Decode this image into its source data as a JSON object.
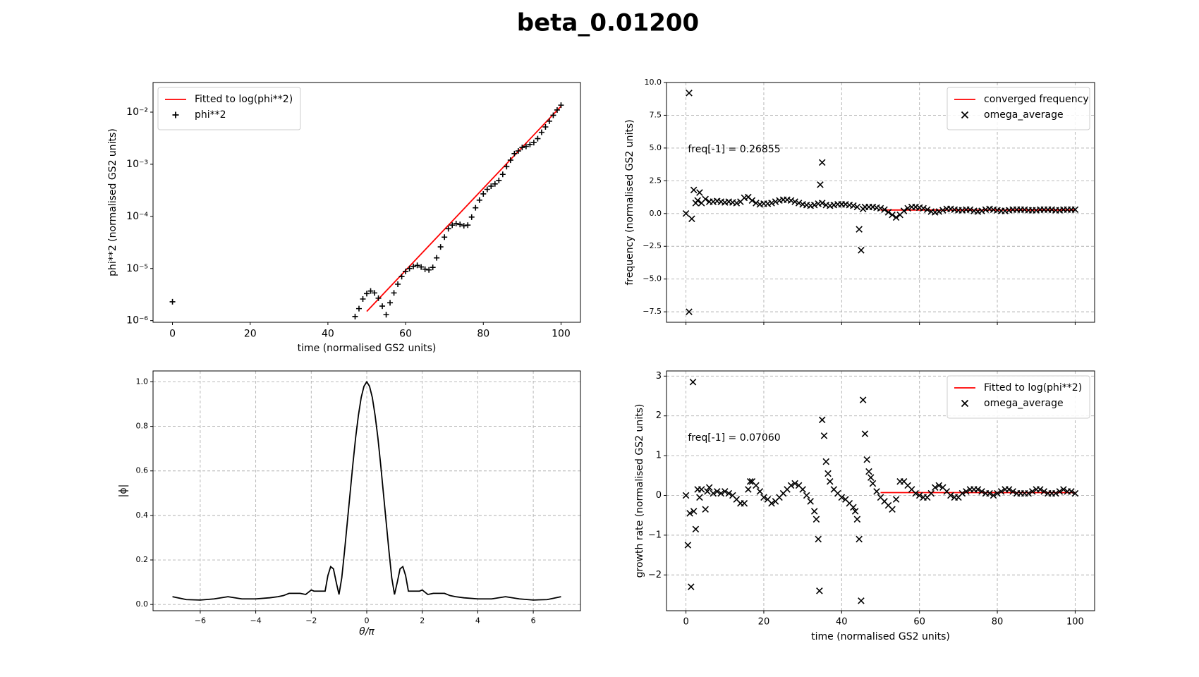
{
  "title": "beta_0.01200",
  "chart_data": [
    {
      "type": "scatter",
      "yscale": "log",
      "xlabel": "time (normalised GS2 units)",
      "ylabel": "phi**2 (normalised GS2 units)",
      "xlim": [
        -5,
        105
      ],
      "xticks": [
        0,
        20,
        40,
        60,
        80,
        100
      ],
      "ylim": [
        9.3e-07,
        0.037
      ],
      "yticks": [
        {
          "value": 1e-06,
          "label": "10⁻⁶"
        },
        {
          "value": 1e-05,
          "label": "10⁻⁵"
        },
        {
          "value": 0.0001,
          "label": "10⁻⁴"
        },
        {
          "value": 0.001,
          "label": "10⁻³"
        },
        {
          "value": 0.01,
          "label": "10⁻²"
        }
      ],
      "grid": false,
      "legend": "upper left",
      "series": [
        {
          "name": "Fitted to log(phi**2)",
          "color": "#ff0000",
          "kind": "line",
          "x": [
            50,
            100
          ],
          "values": [
            1.5e-06,
            0.013
          ]
        },
        {
          "name": "phi**2",
          "color": "#000000",
          "kind": "plus",
          "x": [
            0,
            47,
            48,
            49,
            50,
            51,
            52,
            53,
            54,
            55,
            56,
            57,
            58,
            59,
            60,
            61,
            62,
            63,
            64,
            65,
            66,
            67,
            68,
            69,
            70,
            71,
            72,
            73,
            74,
            75,
            76,
            77,
            78,
            79,
            80,
            81,
            82,
            83,
            84,
            85,
            86,
            87,
            88,
            89,
            90,
            91,
            92,
            93,
            94,
            95,
            96,
            97,
            98,
            99,
            100
          ],
          "values": [
            2.3e-06,
            1.2e-06,
            1.7e-06,
            2.6e-06,
            3.3e-06,
            3.7e-06,
            3.4e-06,
            2.7e-06,
            1.9e-06,
            1.3e-06,
            2.2e-06,
            3.4e-06,
            5e-06,
            7e-06,
            8.8e-06,
            1e-05,
            1.1e-05,
            1.15e-05,
            1.07e-05,
            9.7e-06,
            9.4e-06,
            1.05e-05,
            1.6e-05,
            2.6e-05,
            4e-05,
            5.8e-05,
            6.8e-05,
            7.3e-05,
            7e-05,
            6.6e-05,
            6.8e-05,
            9.7e-05,
            0.000146,
            0.000205,
            0.00027,
            0.00033,
            0.00038,
            0.00042,
            0.00049,
            0.00064,
            0.0009,
            0.0012,
            0.0016,
            0.0018,
            0.0021,
            0.0022,
            0.0024,
            0.0026,
            0.0031,
            0.0041,
            0.0052,
            0.0067,
            0.0087,
            0.011,
            0.0136
          ]
        }
      ]
    },
    {
      "type": "scatter",
      "ylabel": "frequency (normalised GS2 units)",
      "annotation": "freq[-1] = 0.26855",
      "xlim": [
        -5,
        105
      ],
      "xticks": [
        0,
        20,
        40,
        60,
        80,
        100
      ],
      "xticklabels": false,
      "ylim": [
        -8.3,
        10.0
      ],
      "yticks": [
        {
          "value": -7.5,
          "label": "−7.5"
        },
        {
          "value": -5,
          "label": "−5.0"
        },
        {
          "value": -2.5,
          "label": "−2.5"
        },
        {
          "value": 0,
          "label": "0.0"
        },
        2.5,
        {
          "value": 5,
          "label": "5.0"
        },
        7.5,
        {
          "value": 10,
          "label": "10.0"
        }
      ],
      "grid": true,
      "legend": "upper right",
      "series": [
        {
          "name": "converged frequency",
          "color": "#ff0000",
          "kind": "line",
          "x": [
            50,
            100
          ],
          "values": [
            0.26855,
            0.26855
          ]
        },
        {
          "name": "omega_average",
          "color": "#000000",
          "kind": "x",
          "x": [
            0,
            0.8,
            0.8,
            1.5,
            2,
            2.5,
            3,
            3.5,
            4,
            5,
            6,
            7,
            8,
            9,
            10,
            11,
            12,
            13,
            14,
            15,
            16,
            17,
            18,
            19,
            20,
            21,
            22,
            23,
            24,
            25,
            26,
            27,
            28,
            29,
            30,
            31,
            32,
            33,
            34,
            34.5,
            35,
            35,
            36,
            37,
            38,
            39,
            40,
            41,
            42,
            43,
            44,
            44.5,
            45,
            45.5,
            46,
            47,
            48,
            49,
            50,
            51,
            52,
            53,
            54,
            55,
            56,
            57,
            58,
            59,
            60,
            61,
            62,
            63,
            64,
            65,
            66,
            67,
            68,
            69,
            70,
            71,
            72,
            73,
            74,
            75,
            76,
            77,
            78,
            79,
            80,
            81,
            82,
            83,
            84,
            85,
            86,
            87,
            88,
            89,
            90,
            91,
            92,
            93,
            94,
            95,
            96,
            97,
            98,
            99,
            100
          ],
          "values": [
            0,
            9.2,
            -7.5,
            -0.4,
            1.8,
            0.8,
            1.0,
            1.6,
            0.8,
            1.1,
            0.9,
            0.9,
            0.95,
            0.9,
            0.85,
            0.9,
            0.85,
            0.8,
            0.9,
            1.2,
            1.25,
            1.0,
            0.8,
            0.7,
            0.75,
            0.75,
            0.8,
            0.9,
            1.0,
            1.05,
            1.05,
            1.0,
            0.9,
            0.8,
            0.7,
            0.65,
            0.6,
            0.65,
            0.75,
            2.2,
            3.9,
            0.8,
            0.65,
            0.6,
            0.65,
            0.7,
            0.7,
            0.7,
            0.65,
            0.6,
            0.5,
            -1.2,
            -2.8,
            0.35,
            0.5,
            0.5,
            0.5,
            0.45,
            0.4,
            0.3,
            0.1,
            -0.1,
            -0.3,
            -0.1,
            0.2,
            0.4,
            0.5,
            0.5,
            0.45,
            0.4,
            0.3,
            0.15,
            0.1,
            0.15,
            0.25,
            0.35,
            0.35,
            0.3,
            0.25,
            0.25,
            0.3,
            0.3,
            0.2,
            0.15,
            0.2,
            0.3,
            0.35,
            0.3,
            0.25,
            0.2,
            0.2,
            0.25,
            0.3,
            0.3,
            0.3,
            0.3,
            0.25,
            0.25,
            0.25,
            0.3,
            0.3,
            0.3,
            0.3,
            0.25,
            0.25,
            0.3,
            0.3,
            0.3,
            0.3
          ]
        }
      ]
    },
    {
      "type": "line",
      "xlabel": "θ/π",
      "ylabel": "|ϕ|",
      "xlim": [
        -7.7,
        7.7
      ],
      "xticks": [
        {
          "value": -6,
          "label": "−6"
        },
        {
          "value": -4,
          "label": "−4"
        },
        {
          "value": -2,
          "label": "−2"
        },
        0,
        2,
        4,
        6
      ],
      "ylim": [
        -0.028,
        1.049
      ],
      "yticks": [
        {
          "value": 0,
          "label": "0.0"
        },
        0.2,
        0.4,
        0.6,
        0.8,
        {
          "value": 1,
          "label": "1.0"
        }
      ],
      "grid": true,
      "series": [
        {
          "color": "#000000",
          "kind": "line",
          "x": [
            -7,
            -6.5,
            -6,
            -5.5,
            -5,
            -4.5,
            -4,
            -3.5,
            -3.2,
            -3,
            -2.8,
            -2.6,
            -2.4,
            -2.2,
            -2,
            -1.9,
            -1.8,
            -1.7,
            -1.6,
            -1.5,
            -1.4,
            -1.3,
            -1.2,
            -1.1,
            -1,
            -0.9,
            -0.8,
            -0.7,
            -0.6,
            -0.5,
            -0.4,
            -0.3,
            -0.2,
            -0.1,
            0,
            0.1,
            0.2,
            0.3,
            0.4,
            0.5,
            0.6,
            0.7,
            0.8,
            0.9,
            1,
            1.1,
            1.2,
            1.3,
            1.4,
            1.5,
            1.6,
            1.7,
            1.8,
            1.9,
            2,
            2.2,
            2.4,
            2.6,
            2.8,
            3,
            3.2,
            3.5,
            4,
            4.5,
            5,
            5.5,
            6,
            6.5,
            7
          ],
          "values": [
            0.035,
            0.022,
            0.02,
            0.025,
            0.035,
            0.025,
            0.025,
            0.03,
            0.035,
            0.04,
            0.05,
            0.05,
            0.05,
            0.045,
            0.065,
            0.06,
            0.06,
            0.06,
            0.06,
            0.06,
            0.13,
            0.17,
            0.16,
            0.1,
            0.045,
            0.12,
            0.24,
            0.37,
            0.5,
            0.63,
            0.75,
            0.85,
            0.93,
            0.98,
            1.0,
            0.98,
            0.93,
            0.85,
            0.75,
            0.63,
            0.5,
            0.37,
            0.24,
            0.12,
            0.045,
            0.1,
            0.16,
            0.17,
            0.13,
            0.06,
            0.06,
            0.06,
            0.06,
            0.06,
            0.065,
            0.045,
            0.05,
            0.05,
            0.05,
            0.04,
            0.035,
            0.03,
            0.025,
            0.025,
            0.035,
            0.025,
            0.02,
            0.022,
            0.035
          ]
        }
      ]
    },
    {
      "type": "scatter",
      "xlabel": "time (normalised GS2 units)",
      "ylabel": "growth rate (normalised GS2 units)",
      "annotation": "freq[-1] = 0.07060",
      "xlim": [
        -5,
        105
      ],
      "xticks": [
        0,
        20,
        40,
        60,
        80,
        100
      ],
      "ylim": [
        -2.9,
        3.13
      ],
      "yticks": [
        {
          "value": -2,
          "label": "−2"
        },
        {
          "value": -1,
          "label": "−1"
        },
        0,
        1,
        2,
        3
      ],
      "grid": true,
      "legend": "upper right",
      "series": [
        {
          "name": "Fitted to log(phi**2)",
          "color": "#ff0000",
          "kind": "line",
          "x": [
            50,
            100
          ],
          "values": [
            0.0706,
            0.0706
          ]
        },
        {
          "name": "omega_average",
          "color": "#000000",
          "kind": "x",
          "x": [
            0,
            0.5,
            1,
            1.3,
            1.8,
            2,
            2.5,
            3,
            3.5,
            4,
            5,
            5.5,
            6,
            7,
            8,
            9,
            10,
            11,
            12,
            13,
            14,
            15,
            16,
            16.5,
            17,
            18,
            19,
            20,
            21,
            22,
            23,
            24,
            25,
            26,
            27,
            28,
            29,
            30,
            31,
            32,
            33,
            33.5,
            34,
            34.3,
            35,
            35.5,
            36,
            36.5,
            37,
            38,
            39,
            40,
            41,
            42,
            43,
            43.5,
            44,
            44.5,
            45,
            45.5,
            46,
            46.5,
            47,
            47.5,
            48,
            49,
            50,
            51,
            52,
            53,
            54,
            55,
            56,
            57,
            58,
            59,
            60,
            61,
            62,
            63,
            64,
            65,
            66,
            67,
            68,
            69,
            70,
            71,
            72,
            73,
            74,
            75,
            76,
            77,
            78,
            79,
            80,
            81,
            82,
            83,
            84,
            85,
            86,
            87,
            88,
            89,
            90,
            91,
            92,
            93,
            94,
            95,
            96,
            97,
            98,
            99,
            100
          ],
          "values": [
            0,
            -1.25,
            -0.45,
            -2.3,
            2.85,
            -0.4,
            -0.85,
            0.15,
            -0.05,
            0.15,
            -0.35,
            0.1,
            0.2,
            0.05,
            0.1,
            0.05,
            0.1,
            0.05,
            0.0,
            -0.1,
            -0.2,
            -0.2,
            0.15,
            0.35,
            0.35,
            0.25,
            0.1,
            -0.05,
            -0.1,
            -0.2,
            -0.15,
            -0.05,
            0.05,
            0.15,
            0.25,
            0.3,
            0.25,
            0.15,
            0.0,
            -0.15,
            -0.4,
            -0.6,
            -1.1,
            -2.4,
            1.9,
            1.5,
            0.85,
            0.55,
            0.35,
            0.15,
            0.05,
            -0.05,
            -0.1,
            -0.2,
            -0.3,
            -0.4,
            -0.6,
            -1.1,
            -2.65,
            2.4,
            1.55,
            0.9,
            0.6,
            0.45,
            0.3,
            0.1,
            -0.05,
            -0.15,
            -0.25,
            -0.35,
            -0.1,
            0.35,
            0.35,
            0.25,
            0.15,
            0.05,
            0.0,
            -0.05,
            -0.05,
            0.05,
            0.2,
            0.25,
            0.2,
            0.1,
            0.0,
            -0.05,
            -0.05,
            0.05,
            0.1,
            0.15,
            0.15,
            0.15,
            0.1,
            0.05,
            0.05,
            0.0,
            0.05,
            0.1,
            0.15,
            0.15,
            0.1,
            0.05,
            0.05,
            0.05,
            0.05,
            0.1,
            0.15,
            0.15,
            0.1,
            0.05,
            0.05,
            0.05,
            0.1,
            0.15,
            0.1,
            0.1,
            0.05
          ]
        }
      ]
    }
  ]
}
